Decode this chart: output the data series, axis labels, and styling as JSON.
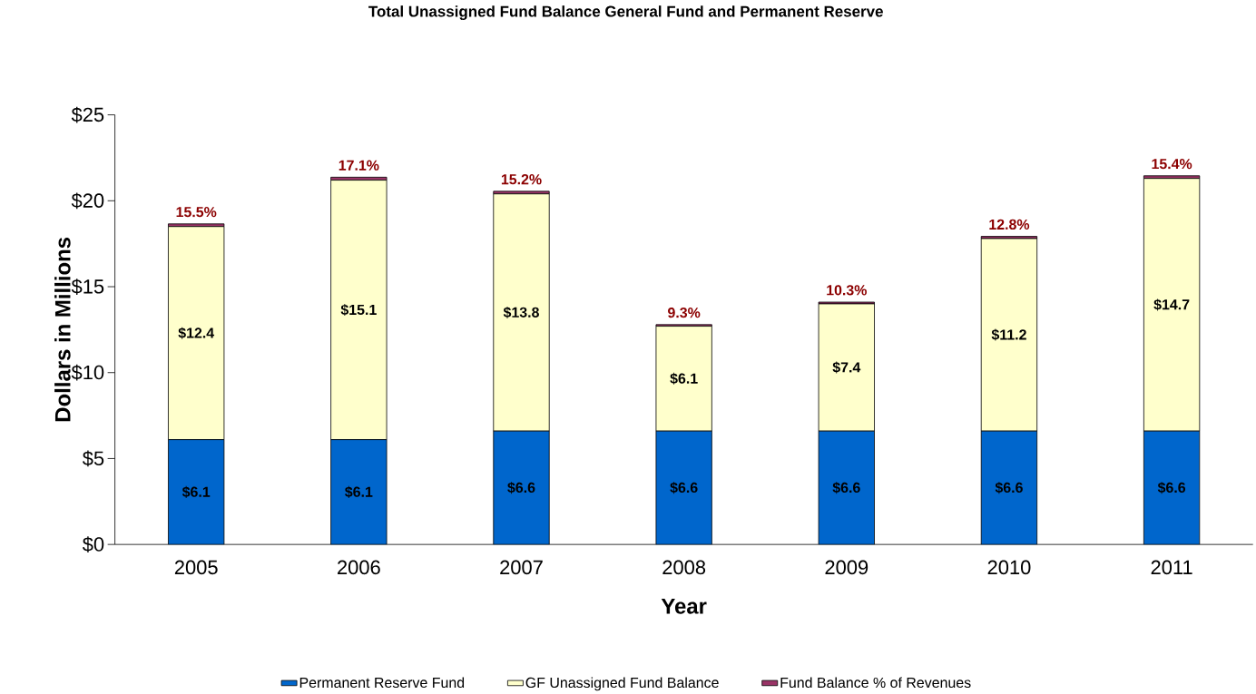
{
  "chart_data": {
    "type": "bar",
    "stacked": true,
    "title": "Total Unassigned Fund Balance General Fund and Permanent Reserve",
    "xlabel": "Year",
    "ylabel": "Dollars in Millions",
    "categories": [
      "2005",
      "2006",
      "2007",
      "2008",
      "2009",
      "2010",
      "2011"
    ],
    "ylim": [
      0,
      25
    ],
    "yticks": [
      {
        "value": 0,
        "label": "$0"
      },
      {
        "value": 5,
        "label": "$5"
      },
      {
        "value": 10,
        "label": "$10"
      },
      {
        "value": 15,
        "label": "$15"
      },
      {
        "value": 20,
        "label": "$20"
      },
      {
        "value": 25,
        "label": "$25"
      }
    ],
    "legend": "bottom",
    "series": [
      {
        "name": "Permanent Reserve Fund",
        "color": "#0066cc",
        "values": [
          6.1,
          6.1,
          6.6,
          6.6,
          6.6,
          6.6,
          6.6
        ],
        "value_labels": [
          "$6.1",
          "$6.1",
          "$6.6",
          "$6.6",
          "$6.6",
          "$6.6",
          "$6.6"
        ]
      },
      {
        "name": "GF Unassigned Fund Balance",
        "color": "#ffffcc",
        "values": [
          12.4,
          15.1,
          13.8,
          6.1,
          7.4,
          11.2,
          14.7
        ],
        "value_labels": [
          "$12.4",
          "$15.1",
          "$13.8",
          "$6.1",
          "$7.4",
          "$11.2",
          "$14.7"
        ]
      },
      {
        "name": "Fund Balance % of Revenues",
        "color": "#993366",
        "values": [
          0.155,
          0.171,
          0.152,
          0.093,
          0.103,
          0.128,
          0.154
        ],
        "value_labels": [
          "15.5%",
          "17.1%",
          "15.2%",
          "9.3%",
          "10.3%",
          "12.8%",
          "15.4%"
        ]
      }
    ]
  }
}
